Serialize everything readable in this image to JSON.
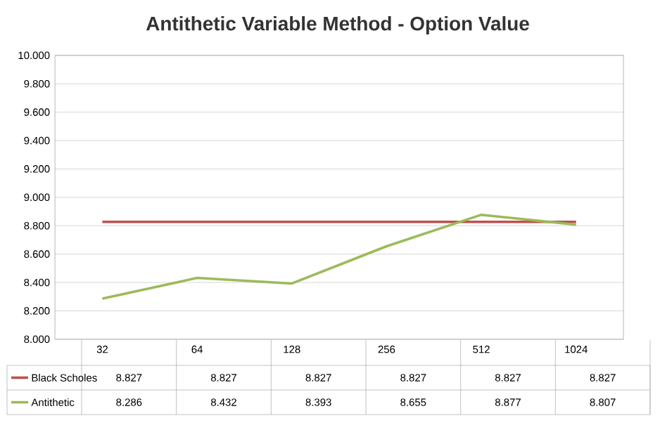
{
  "chart_data": {
    "type": "line",
    "title": "Antithetic Variable Method - Option Value",
    "categories": [
      "32",
      "64",
      "128",
      "256",
      "512",
      "1024"
    ],
    "series": [
      {
        "name": "Black Scholes",
        "color": "#c0504d",
        "values": [
          8.827,
          8.827,
          8.827,
          8.827,
          8.827,
          8.827
        ]
      },
      {
        "name": "Antithetic",
        "color": "#9bbb59",
        "values": [
          8.286,
          8.432,
          8.393,
          8.655,
          8.877,
          8.807
        ]
      }
    ],
    "ylim": [
      8,
      10
    ],
    "yticks": [
      {
        "value": 8,
        "label": "8.000"
      },
      {
        "value": 8.2,
        "label": "8.200"
      },
      {
        "value": 8.4,
        "label": "8.400"
      },
      {
        "value": 8.6,
        "label": "8.600"
      },
      {
        "value": 8.8,
        "label": "8.800"
      },
      {
        "value": 9,
        "label": "9.000"
      },
      {
        "value": 9.2,
        "label": "9.200"
      },
      {
        "value": 9.4,
        "label": "9.400"
      },
      {
        "value": 9.6,
        "label": "9.600"
      },
      {
        "value": 9.8,
        "label": "9.800"
      },
      {
        "value": 10,
        "label": "10.000"
      }
    ],
    "grid": "y",
    "legend": "bottom left",
    "data_labels": true,
    "marker": "none",
    "line_style": "solid"
  }
}
